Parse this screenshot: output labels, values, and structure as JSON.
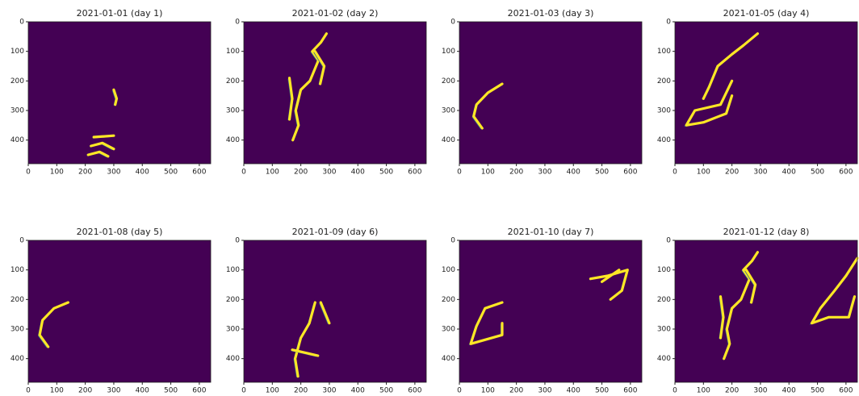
{
  "chart_data": [
    {
      "type": "image",
      "title": "2021-01-01 (day 1)",
      "xlim": [
        0,
        640
      ],
      "ylim": [
        480,
        0
      ],
      "xticks": [
        0,
        100,
        200,
        300,
        400,
        500,
        600
      ],
      "yticks": [
        0,
        100,
        200,
        300,
        400
      ],
      "background": "#440154",
      "color": "#fde725"
    },
    {
      "type": "image",
      "title": "2021-01-02 (day 2)",
      "xlim": [
        0,
        640
      ],
      "ylim": [
        480,
        0
      ],
      "xticks": [
        0,
        100,
        200,
        300,
        400,
        500,
        600
      ],
      "yticks": [
        0,
        100,
        200,
        300,
        400
      ],
      "background": "#440154",
      "color": "#fde725"
    },
    {
      "type": "image",
      "title": "2021-01-03 (day 3)",
      "xlim": [
        0,
        640
      ],
      "ylim": [
        480,
        0
      ],
      "xticks": [
        0,
        100,
        200,
        300,
        400,
        500,
        600
      ],
      "yticks": [
        0,
        100,
        200,
        300,
        400
      ],
      "background": "#440154",
      "color": "#fde725"
    },
    {
      "type": "image",
      "title": "2021-01-05 (day 4)",
      "xlim": [
        0,
        640
      ],
      "ylim": [
        480,
        0
      ],
      "xticks": [
        0,
        100,
        200,
        300,
        400,
        500,
        600
      ],
      "yticks": [
        0,
        100,
        200,
        300,
        400
      ],
      "background": "#440154",
      "color": "#fde725"
    },
    {
      "type": "image",
      "title": "2021-01-08 (day 5)",
      "xlim": [
        0,
        640
      ],
      "ylim": [
        480,
        0
      ],
      "xticks": [
        0,
        100,
        200,
        300,
        400,
        500,
        600
      ],
      "yticks": [
        0,
        100,
        200,
        300,
        400
      ],
      "background": "#440154",
      "color": "#fde725"
    },
    {
      "type": "image",
      "title": "2021-01-09 (day 6)",
      "xlim": [
        0,
        640
      ],
      "ylim": [
        480,
        0
      ],
      "xticks": [
        0,
        100,
        200,
        300,
        400,
        500,
        600
      ],
      "yticks": [
        0,
        100,
        200,
        300,
        400
      ],
      "background": "#440154",
      "color": "#fde725"
    },
    {
      "type": "image",
      "title": "2021-01-10 (day 7)",
      "xlim": [
        0,
        640
      ],
      "ylim": [
        480,
        0
      ],
      "xticks": [
        0,
        100,
        200,
        300,
        400,
        500,
        600
      ],
      "yticks": [
        0,
        100,
        200,
        300,
        400
      ],
      "background": "#440154",
      "color": "#fde725"
    },
    {
      "type": "image",
      "title": "2021-01-12 (day 8)",
      "xlim": [
        0,
        640
      ],
      "ylim": [
        480,
        0
      ],
      "xticks": [
        0,
        100,
        200,
        300,
        400,
        500,
        600
      ],
      "yticks": [
        0,
        100,
        200,
        300,
        400
      ],
      "background": "#440154",
      "color": "#fde725"
    }
  ]
}
